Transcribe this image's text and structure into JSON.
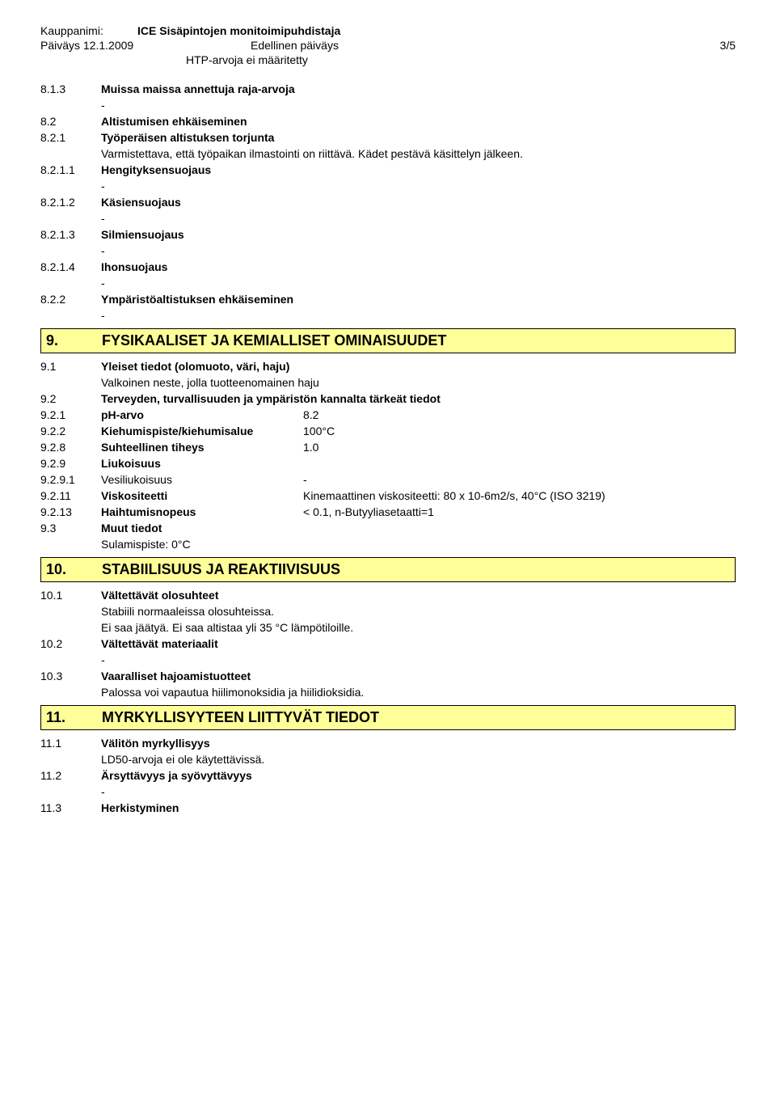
{
  "header": {
    "trade_name_label": "Kauppanimi:",
    "trade_name": "ICE Sisäpintojen monitoimipuhdistaja",
    "date_label": "Päiväys 12.1.2009",
    "prev_date_label": "Edellinen päiväys",
    "page": "3/5",
    "indent_note": "HTP-arvoja ei määritetty"
  },
  "s8": {
    "e813": {
      "num": "8.1.3",
      "label": "Muissa maissa annettuja raja-arvoja",
      "body": "-"
    },
    "e82": {
      "num": "8.2",
      "label": "Altistumisen ehkäiseminen"
    },
    "e821": {
      "num": "8.2.1",
      "label": "Työperäisen altistuksen torjunta",
      "body": "Varmistettava, että työpaikan ilmastointi on riittävä. Kädet pestävä käsittelyn jälkeen."
    },
    "e8211": {
      "num": "8.2.1.1",
      "label": "Hengityksensuojaus",
      "body": "-"
    },
    "e8212": {
      "num": "8.2.1.2",
      "label": "Käsiensuojaus",
      "body": "-"
    },
    "e8213": {
      "num": "8.2.1.3",
      "label": "Silmiensuojaus",
      "body": "-"
    },
    "e8214": {
      "num": "8.2.1.4",
      "label": "Ihonsuojaus",
      "body": "-"
    },
    "e822": {
      "num": "8.2.2",
      "label": "Ympäristöaltistuksen ehkäiseminen",
      "body": "-"
    }
  },
  "sec9": {
    "num": "9.",
    "title": "FYSIKAALISET JA KEMIALLISET OMINAISUUDET"
  },
  "s9": {
    "e91": {
      "num": "9.1",
      "label": "Yleiset tiedot (olomuoto, väri, haju)",
      "body": "Valkoinen neste, jolla tuotteenomainen haju"
    },
    "e92": {
      "num": "9.2",
      "label": "Terveyden, turvallisuuden ja ympäristön kannalta tärkeät tiedot"
    },
    "e921": {
      "num": "9.2.1",
      "label": "pH-arvo",
      "val": "8.2"
    },
    "e922": {
      "num": "9.2.2",
      "label": "Kiehumispiste/kiehumisalue",
      "val": "100°C"
    },
    "e928": {
      "num": "9.2.8",
      "label": "Suhteellinen tiheys",
      "val": "1.0"
    },
    "e929": {
      "num": "9.2.9",
      "label": "Liukoisuus"
    },
    "e9291": {
      "num": "9.2.9.1",
      "label": "Vesiliukoisuus",
      "val": "-"
    },
    "e9211": {
      "num": "9.2.11",
      "label": "Viskositeetti",
      "val": "Kinemaattinen viskositeetti: 80 x 10-6m2/s, 40°C (ISO 3219)"
    },
    "e9213": {
      "num": "9.2.13",
      "label": "Haihtumisnopeus",
      "val": "< 0.1, n-Butyyliasetaatti=1"
    },
    "e93": {
      "num": "9.3",
      "label": "Muut tiedot",
      "body": "Sulamispiste: 0°C"
    }
  },
  "sec10": {
    "num": "10.",
    "title": "STABIILISUUS JA REAKTIIVISUUS"
  },
  "s10": {
    "e101": {
      "num": "10.1",
      "label": "Vältettävät olosuhteet",
      "body1": "Stabiili normaaleissa olosuhteissa.",
      "body2": "Ei saa jäätyä. Ei saa altistaa yli 35 °C lämpötiloille."
    },
    "e102": {
      "num": "10.2",
      "label": "Vältettävät materiaalit",
      "body": "-"
    },
    "e103": {
      "num": "10.3",
      "label": "Vaaralliset hajoamistuotteet",
      "body": "Palossa voi vapautua hiilimonoksidia ja hiilidioksidia."
    }
  },
  "sec11": {
    "num": "11.",
    "title": "MYRKYLLISYYTEEN LIITTYVÄT TIEDOT"
  },
  "s11": {
    "e111": {
      "num": "11.1",
      "label": "Välitön myrkyllisyys",
      "body": "LD50-arvoja ei ole käytettävissä."
    },
    "e112": {
      "num": "11.2",
      "label": "Ärsyttävyys ja syövyttävyys",
      "body": "-"
    },
    "e113": {
      "num": "11.3",
      "label": "Herkistyminen"
    }
  }
}
